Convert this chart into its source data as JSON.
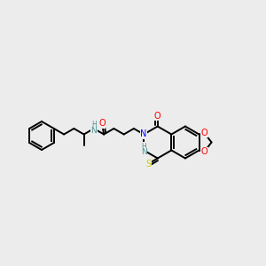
{
  "background_color": "#ececec",
  "atom_colors": {
    "N": "#0000ff",
    "O": "#ff0000",
    "S": "#cccc00",
    "NH": "#4a9090",
    "C": "#000000"
  },
  "bond_color": "#000000",
  "figsize": [
    3.0,
    3.0
  ],
  "dpi": 100
}
